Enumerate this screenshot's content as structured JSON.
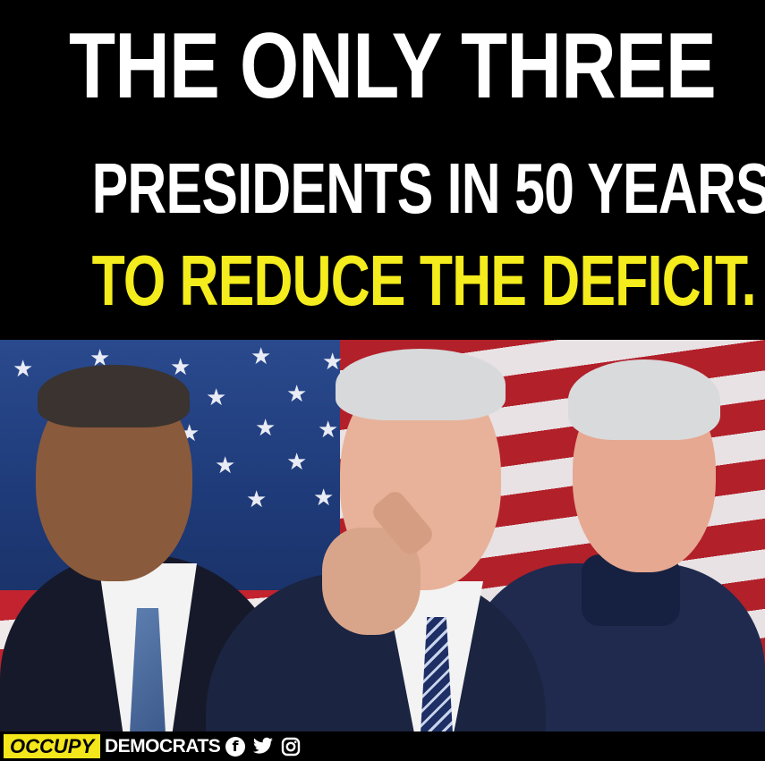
{
  "headline": {
    "line1": "THE ONLY THREE",
    "line2": "PRESIDENTS IN 50 YEARS",
    "line3": "TO REDUCE THE DEFICIT."
  },
  "colors": {
    "background": "#000000",
    "headline_white": "#ffffff",
    "headline_highlight": "#f4ec1c",
    "brand_yellow": "#f3e61a"
  },
  "footer": {
    "brand_part1": "OCCUPY",
    "brand_part2": "DEMOCRATS",
    "social_icons": [
      "facebook-icon",
      "twitter-icon",
      "instagram-icon"
    ]
  },
  "photo": {
    "description_icons": [
      "american-flag",
      "person-left",
      "person-center-pointing",
      "person-right"
    ]
  }
}
